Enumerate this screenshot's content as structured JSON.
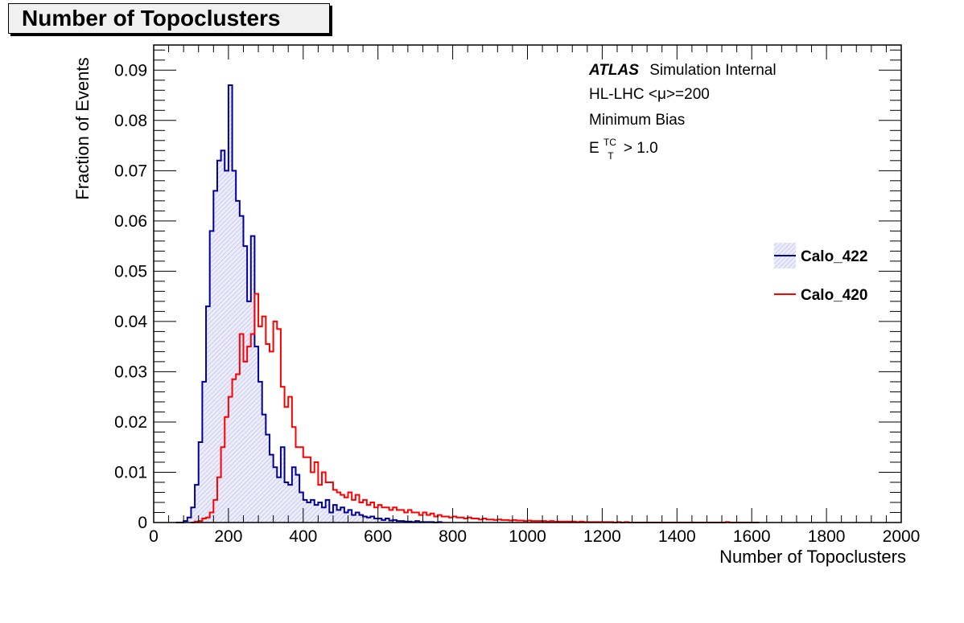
{
  "title": "Number of Topoclusters",
  "chart_data": {
    "type": "histogram",
    "xlabel": "Number of Topoclusters",
    "ylabel": "Fraction of Events",
    "xlim": [
      0,
      2000
    ],
    "ylim": [
      0,
      0.095
    ],
    "x_ticks": [
      0,
      200,
      400,
      600,
      800,
      1000,
      1200,
      1400,
      1600,
      1800,
      2000
    ],
    "y_ticks": [
      0,
      0.01,
      0.02,
      0.03,
      0.04,
      0.05,
      0.06,
      0.07,
      0.08,
      0.09
    ],
    "x_tick_labels": [
      "0",
      "200",
      "400",
      "600",
      "800",
      "1000",
      "1200",
      "1400",
      "1600",
      "1800",
      "2000"
    ],
    "y_tick_labels": [
      "0",
      "0.01",
      "0.02",
      "0.03",
      "0.04",
      "0.05",
      "0.06",
      "0.07",
      "0.08",
      "0.09"
    ],
    "bin_width": 10,
    "annotations": {
      "atlas": "ATLAS",
      "atlas_suffix": "Simulation Internal",
      "line2": "HL-LHC <μ>=200",
      "line3": "Minimum Bias",
      "line4_base": "E",
      "line4_sup": "TC",
      "line4_sub": "T",
      "line4_rest": " > 1.0"
    },
    "legend_position": "right",
    "series": [
      {
        "name": "Calo_422",
        "color": "#000099",
        "fill": "hatched-lavender",
        "x_start": 60,
        "values": [
          0,
          0,
          0.0003,
          0.001,
          0.003,
          0.0075,
          0.016,
          0.028,
          0.043,
          0.058,
          0.066,
          0.072,
          0.074,
          0.07,
          0.087,
          0.07,
          0.064,
          0.061,
          0.055,
          0.044,
          0.057,
          0.035,
          0.028,
          0.0215,
          0.0175,
          0.0135,
          0.011,
          0.009,
          0.015,
          0.008,
          0.0075,
          0.011,
          0.0095,
          0.006,
          0.0045,
          0.004,
          0.0045,
          0.0035,
          0.004,
          0.003,
          0.0045,
          0.002,
          0.0035,
          0.0025,
          0.003,
          0.002,
          0.0025,
          0.0015,
          0.002,
          0.0015,
          0.0012,
          0.001,
          0.0012,
          0.0008,
          0.0008,
          0.0005,
          0.0008,
          0.0004,
          0.0005,
          0.0003,
          0.0003,
          0.0002,
          0.0002,
          0.0001,
          0.0003,
          0.0001,
          0.0001,
          0.0001,
          0.0001,
          0,
          0.0001
        ]
      },
      {
        "name": "Calo_420",
        "color": "#ff0000",
        "fill": "none",
        "x_start": 100,
        "values": [
          0,
          0.0002,
          0.0003,
          0.0008,
          0.001,
          0.002,
          0.0045,
          0.009,
          0.015,
          0.021,
          0.025,
          0.0285,
          0.0295,
          0.0375,
          0.032,
          0.035,
          0.0375,
          0.0455,
          0.039,
          0.041,
          0.0355,
          0.034,
          0.04,
          0.0385,
          0.027,
          0.023,
          0.025,
          0.019,
          0.015,
          0.015,
          0.013,
          0.013,
          0.01,
          0.012,
          0.0075,
          0.01,
          0.008,
          0.008,
          0.0065,
          0.006,
          0.0055,
          0.005,
          0.006,
          0.0045,
          0.0055,
          0.004,
          0.0045,
          0.0035,
          0.004,
          0.003,
          0.0035,
          0.003,
          0.003,
          0.0025,
          0.003,
          0.0025,
          0.0025,
          0.002,
          0.0025,
          0.002,
          0.002,
          0.0015,
          0.002,
          0.0015,
          0.0018,
          0.0012,
          0.0015,
          0.0012,
          0.0012,
          0.001,
          0.0012,
          0.001,
          0.001,
          0.0008,
          0.001,
          0.0008,
          0.0008,
          0.0006,
          0.0008,
          0.0006,
          0.0006,
          0.0005,
          0.0006,
          0.0005,
          0.0005,
          0.0004,
          0.0005,
          0.0004,
          0.0004,
          0.0003,
          0.0004,
          0.0003,
          0.0003,
          0.0003,
          0.0003,
          0.0002,
          0.0003,
          0.0002,
          0.0002,
          0.0002,
          0.0002,
          0.0002,
          0.0002,
          0.0001,
          0.0002,
          0.0001,
          0.0001,
          0.0001,
          0.0001,
          0.0001,
          0.0001,
          0.0001,
          0.0001,
          0,
          0.0001,
          0,
          0.0001,
          0,
          0,
          0,
          0,
          0,
          0,
          0,
          0,
          0,
          0,
          0,
          0,
          0,
          0,
          0,
          0,
          0,
          0,
          0,
          0,
          0,
          0,
          0,
          0,
          0,
          0,
          0.0001,
          0,
          0,
          0,
          0,
          0,
          0,
          0,
          0
        ]
      }
    ]
  }
}
